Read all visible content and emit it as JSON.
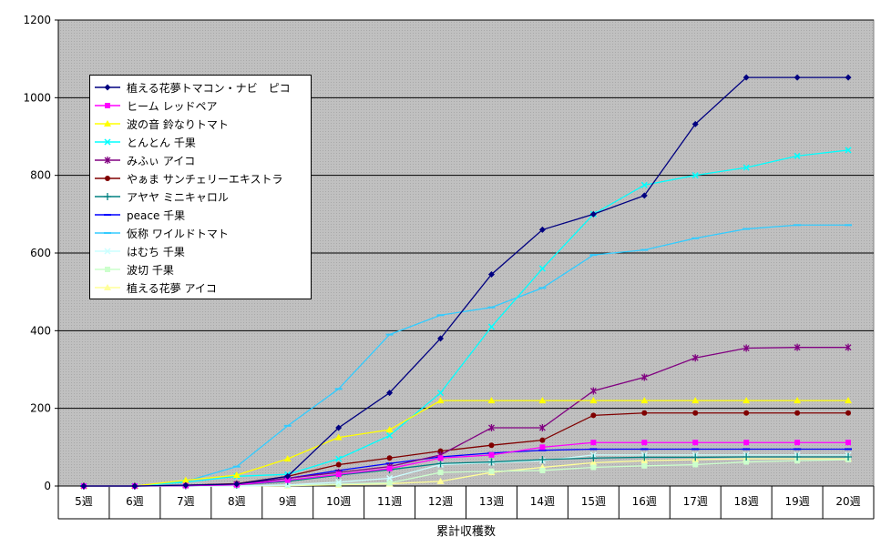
{
  "chart_data": {
    "type": "line",
    "title": "",
    "xlabel": "累計収穫数",
    "ylabel": "",
    "ylim": [
      0,
      1200
    ],
    "yticks": [
      0,
      200,
      400,
      600,
      800,
      1000,
      1200
    ],
    "categories": [
      "5週",
      "6週",
      "7週",
      "8週",
      "9週",
      "10週",
      "11週",
      "12週",
      "13週",
      "14週",
      "15週",
      "16週",
      "17週",
      "18週",
      "19週",
      "20週"
    ],
    "grid": true,
    "legend_position": "top-left",
    "series": [
      {
        "name": "植える花夢トマコン・ナビ　ピコ",
        "color": "#000080",
        "marker": "diamond",
        "values": [
          0,
          0,
          2,
          5,
          25,
          150,
          240,
          380,
          545,
          660,
          700,
          748,
          932,
          1052,
          1052,
          1052
        ]
      },
      {
        "name": "ヒーム レッドペア",
        "color": "#ff00ff",
        "marker": "square",
        "values": [
          0,
          0,
          1,
          3,
          15,
          30,
          45,
          72,
          80,
          100,
          112,
          112,
          112,
          112,
          112,
          112
        ]
      },
      {
        "name": "波の音 鈴なりトマト",
        "color": "#ffff00",
        "marker": "triangle",
        "values": [
          0,
          0,
          15,
          28,
          70,
          125,
          145,
          220,
          220,
          220,
          220,
          220,
          220,
          220,
          220,
          220
        ]
      },
      {
        "name": "とんとん 千果",
        "color": "#00ffff",
        "marker": "x",
        "values": [
          0,
          0,
          10,
          25,
          30,
          70,
          130,
          240,
          410,
          560,
          700,
          775,
          800,
          820,
          850,
          865
        ]
      },
      {
        "name": "みふぃ アイコ",
        "color": "#800080",
        "marker": "star",
        "values": [
          0,
          0,
          2,
          5,
          20,
          35,
          50,
          80,
          150,
          150,
          245,
          280,
          330,
          355,
          357,
          357
        ]
      },
      {
        "name": "やぁま サンチェリーエキストラ",
        "color": "#800000",
        "marker": "circle",
        "values": [
          0,
          0,
          2,
          6,
          25,
          55,
          72,
          90,
          105,
          118,
          182,
          188,
          188,
          188,
          188,
          188
        ]
      },
      {
        "name": "アヤヤ ミニキャロル",
        "color": "#008080",
        "marker": "plus",
        "values": [
          0,
          0,
          1,
          3,
          12,
          28,
          42,
          58,
          62,
          68,
          72,
          74,
          74,
          75,
          75,
          75
        ]
      },
      {
        "name": "peace 千果",
        "color": "#0000ff",
        "marker": "dash",
        "values": [
          0,
          0,
          1,
          4,
          20,
          40,
          58,
          75,
          85,
          92,
          95,
          95,
          95,
          95,
          95,
          95
        ]
      },
      {
        "name": "仮称 ワイルドトマト",
        "color": "#33ccff",
        "marker": "dash",
        "values": [
          0,
          0,
          12,
          50,
          155,
          250,
          390,
          440,
          460,
          510,
          595,
          608,
          638,
          662,
          672,
          672
        ]
      },
      {
        "name": "はむち 千果",
        "color": "#ccffff",
        "marker": "x",
        "values": [
          0,
          0,
          0,
          0,
          3,
          10,
          20,
          55,
          60,
          65,
          80,
          80,
          80,
          80,
          80,
          80
        ]
      },
      {
        "name": "波切 千果",
        "color": "#ccffcc",
        "marker": "square",
        "values": [
          0,
          0,
          0,
          0,
          2,
          5,
          8,
          35,
          38,
          40,
          48,
          52,
          55,
          62,
          65,
          68
        ]
      },
      {
        "name": "植える花夢 アイコ",
        "color": "#ffff99",
        "marker": "triangle",
        "values": [
          0,
          0,
          0,
          0,
          1,
          3,
          6,
          12,
          35,
          48,
          60,
          65,
          68,
          70,
          70,
          70
        ]
      }
    ]
  }
}
